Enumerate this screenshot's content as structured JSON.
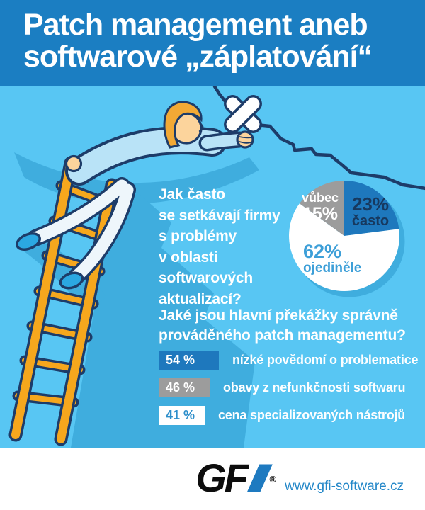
{
  "header": {
    "title_line1": "Patch management aneb",
    "title_line2": "softwarové „záplatování“"
  },
  "illustration": {
    "description": "man on a ladder reaching out to patch a wall crack with crossed plasters"
  },
  "chart_data": [
    {
      "type": "pie",
      "title_lines": [
        "Jak často",
        "se setkávají firmy",
        "s problémy",
        "v oblasti",
        "softwarových",
        "aktualizací?"
      ],
      "slices": [
        {
          "label": "často",
          "value": 23,
          "display": "23%",
          "color": "#1e78bd",
          "text_color": "#17395f"
        },
        {
          "label": "ojediněle",
          "value": 62,
          "display": "62%",
          "color": "#ffffff",
          "text_color": "#3d9fd8"
        },
        {
          "label": "vůbec",
          "value": 15,
          "display": "15%",
          "color": "#9c9c9c",
          "text_color": "#ffffff"
        }
      ],
      "legend_position": "labels-inside"
    },
    {
      "type": "bar",
      "title_lines": [
        "Jaké jsou hlavní překážky správně",
        "prováděného patch managementu?"
      ],
      "categories": [
        "nízké povědomí o problematice",
        "obavy z nefunkčnosti softwaru",
        "cena specializovaných nástrojů"
      ],
      "values": [
        54,
        46,
        41
      ],
      "value_labels": [
        "54 %",
        "46 %",
        "41 %"
      ],
      "bar_colors": [
        "#1e78bd",
        "#9c9c9c",
        "#ffffff"
      ],
      "value_text_colors": [
        "#ffffff",
        "#ffffff",
        "#2e8fcb"
      ],
      "xlim": [
        0,
        100
      ]
    }
  ],
  "footer": {
    "logo_gf": "GF",
    "logo_i": "I",
    "registered": "®",
    "website": "www.gfi-software.cz"
  },
  "colors": {
    "header_bg": "#1b7ec2",
    "main_bg": "#58c6f3",
    "shadow_blue": "#3fadde",
    "outline_navy": "#1d3c69",
    "ladder_orange": "#f6a71d",
    "shirt_blue": "#b9e3f7",
    "pants_white": "#eef6fb",
    "shoe_blue": "#2ba7e2",
    "skin": "#fcd49c",
    "hair": "#f2a935",
    "footer_bg": "#ffffff",
    "gfi_blue": "#1e7ac0"
  }
}
